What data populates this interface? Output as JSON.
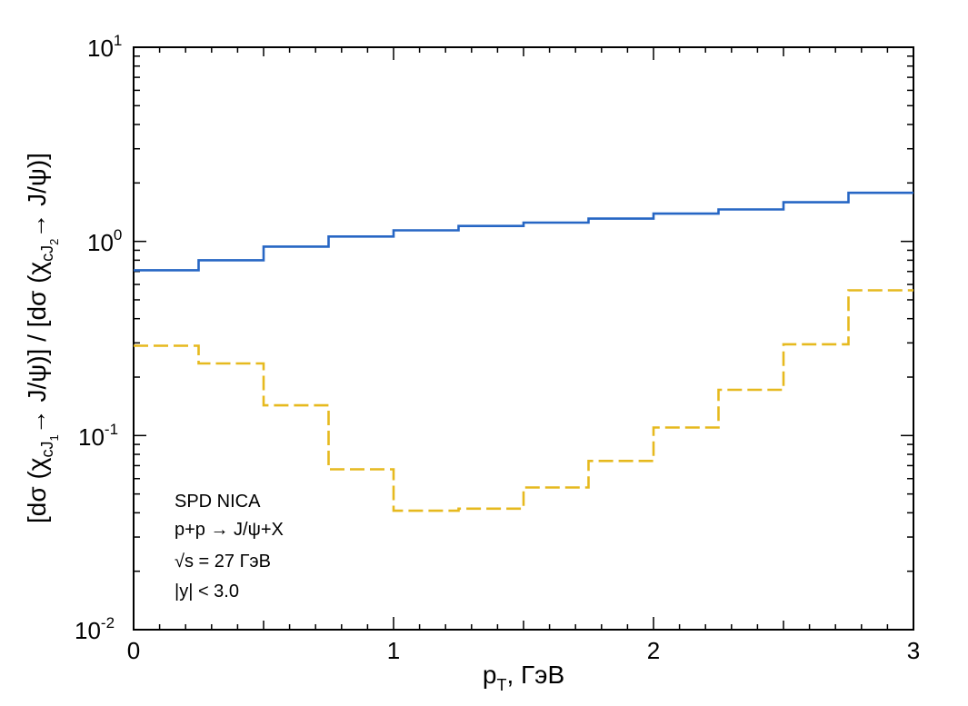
{
  "chart_data": {
    "type": "line",
    "drawstyle": "step",
    "xlabel": {
      "main": "p",
      "sub": "T",
      "rest": ", ГэВ"
    },
    "ylabel": {
      "p1": "[dσ (χ",
      "s1": "cJ",
      "ss1": "1",
      "p2": "→ J/ψ)] / [dσ (χ",
      "s2": "cJ",
      "ss2": "2",
      "p3": "→ J/ψ)]"
    },
    "xlim": [
      0,
      3
    ],
    "ylim": [
      0.01,
      10
    ],
    "yscale": "log",
    "x_ticks": [
      "0",
      "1",
      "2",
      "3"
    ],
    "y_ticks": [
      {
        "base": "10",
        "exp": "1"
      },
      {
        "base": "10",
        "exp": "0"
      },
      {
        "base": "10",
        "exp": "-1"
      },
      {
        "base": "10",
        "exp": "-2"
      }
    ],
    "bin_edges": [
      0,
      0.25,
      0.5,
      0.75,
      1.0,
      1.25,
      1.5,
      1.75,
      2.0,
      2.25,
      2.5,
      2.75,
      3.0
    ],
    "series": [
      {
        "color": "#2666c4",
        "style": "solid",
        "values": [
          0.71,
          0.8,
          0.94,
          1.06,
          1.14,
          1.2,
          1.25,
          1.31,
          1.39,
          1.46,
          1.59,
          1.78
        ]
      },
      {
        "color": "#e6b91e",
        "style": "dashed",
        "values": [
          0.29,
          0.235,
          0.143,
          0.067,
          0.041,
          0.042,
          0.054,
          0.074,
          0.11,
          0.172,
          0.295,
          0.56
        ]
      }
    ],
    "annotations": [
      "SPD NICA",
      "p+p → J/ψ+X",
      "√s = 27 ГэВ",
      "|y| < 3.0"
    ],
    "grid": false,
    "legend": "none"
  }
}
